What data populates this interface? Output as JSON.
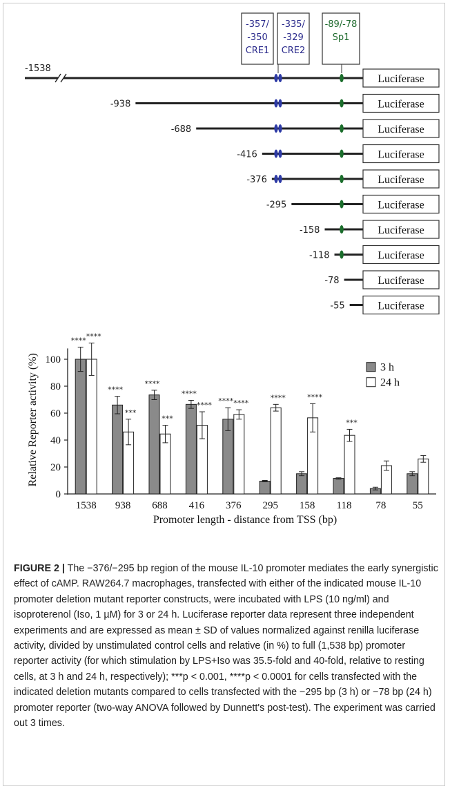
{
  "diagram": {
    "boxes": [
      {
        "line1": "-357/",
        "line2": "-350",
        "line3": "CRE1",
        "color": "#2b2b8c"
      },
      {
        "line1": "-335/",
        "line2": "-329",
        "line3": "CRE2",
        "color": "#2b2b8c"
      },
      {
        "line1": "-89/-78",
        "line2": "Sp1",
        "color": "#1f6b2e"
      }
    ],
    "reporter_label": "Luciferase",
    "constructs": [
      {
        "start": "-1538",
        "cre": true,
        "sp1": true,
        "break": true
      },
      {
        "start": "-938",
        "cre": true,
        "sp1": true
      },
      {
        "start": "-688",
        "cre": true,
        "sp1": true
      },
      {
        "start": "-416",
        "cre": true,
        "sp1": true
      },
      {
        "start": "-376",
        "cre": true,
        "sp1": true
      },
      {
        "start": "-295",
        "cre": false,
        "sp1": true
      },
      {
        "start": "-158",
        "cre": false,
        "sp1": true
      },
      {
        "start": "-118",
        "cre": false,
        "sp1": true
      },
      {
        "start": "-78",
        "cre": false,
        "sp1": false
      },
      {
        "start": "-55",
        "cre": false,
        "sp1": false
      }
    ]
  },
  "chart_data": {
    "type": "bar",
    "ylabel": "Relative Reporter activity (%)",
    "xlabel": "Promoter length - distance from TSS (bp)",
    "ylim": [
      0,
      120
    ],
    "yticks": [
      "0",
      "20",
      "40",
      "60",
      "80",
      "100"
    ],
    "categories": [
      "1538",
      "938",
      "688",
      "416",
      "376",
      "295",
      "158",
      "118",
      "78",
      "55"
    ],
    "series": [
      {
        "name": "3 h",
        "color": "#8a8a8a",
        "values": [
          100,
          66,
          73.5,
          66.5,
          55.5,
          9.5,
          15,
          11.5,
          4,
          15
        ],
        "errors": [
          9,
          6.5,
          3.5,
          3,
          8.5,
          0.5,
          1.5,
          0.5,
          1,
          1.5
        ],
        "sig": [
          "****",
          "****",
          "****",
          "****",
          "****",
          "",
          "",
          "",
          "",
          ""
        ]
      },
      {
        "name": "24 h",
        "color": "#ffffff",
        "values": [
          100,
          46,
          44.5,
          51,
          59,
          64,
          56.5,
          43.5,
          21,
          26
        ],
        "errors": [
          12,
          9.5,
          6.5,
          10,
          3.5,
          2.5,
          10.5,
          4.5,
          3.5,
          2.5
        ],
        "sig": [
          "****",
          "***",
          "***",
          "****",
          "****",
          "****",
          "****",
          "***",
          "",
          ""
        ]
      }
    ],
    "legend_position": "top-right"
  },
  "caption": {
    "label": "FIGURE 2 |",
    "text": " The −376/−295 bp region of the mouse IL-10 promoter mediates the early synergistic effect of cAMP. RAW264.7 macrophages, transfected with either of the indicated mouse IL-10 promoter deletion mutant reporter constructs, were incubated with LPS (10 ng/ml) and isoproterenol (Iso, 1 µM) for 3 or 24 h. Luciferase reporter data represent three independent experiments and are expressed as mean ± SD of values normalized against renilla luciferase activity, divided by unstimulated control cells and relative (in %) to full (1,538 bp) promoter reporter activity (for which stimulation by LPS+Iso was 35.5-fold and 40-fold, relative to resting cells, at 3 h and 24 h, respectively); ***p < 0.001, ****p < 0.0001 for cells transfected with the indicated deletion mutants compared to cells transfected with the −295 bp (3 h) or −78 bp (24 h) promoter reporter (two-way ANOVA followed by Dunnett's post-test). The experiment was carried out 3 times."
  }
}
